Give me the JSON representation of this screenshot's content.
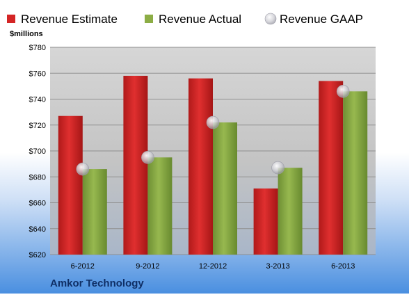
{
  "chart_data": {
    "type": "bar",
    "company": "Amkor Technology",
    "ylabel": "$millions",
    "ylim": [
      620,
      780
    ],
    "yticks": [
      620,
      640,
      660,
      680,
      700,
      720,
      740,
      760,
      780
    ],
    "ytick_labels": [
      "$620",
      "$640",
      "$660",
      "$680",
      "$700",
      "$720",
      "$740",
      "$760",
      "$780"
    ],
    "grid": true,
    "legend_position": "top",
    "categories": [
      "6-2012",
      "9-2012",
      "12-2012",
      "3-2013",
      "6-2013"
    ],
    "series": [
      {
        "name": "Revenue Estimate",
        "type": "bar",
        "color": "#d42525",
        "values": [
          727,
          758,
          756,
          671,
          754
        ]
      },
      {
        "name": "Revenue Actual",
        "type": "bar",
        "color": "#8cad45",
        "values": [
          686,
          695,
          722,
          687,
          746
        ]
      },
      {
        "name": "Revenue GAAP",
        "type": "marker",
        "color": "#c8c8cc",
        "values": [
          686,
          695,
          722,
          687,
          746
        ]
      }
    ]
  }
}
